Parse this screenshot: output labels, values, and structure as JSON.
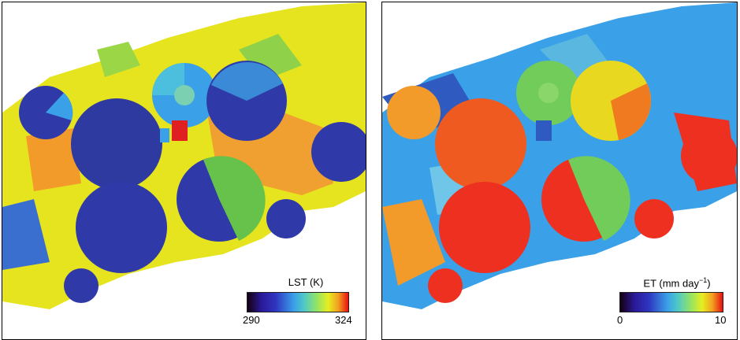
{
  "lst_panel": {
    "legend_title": "LST (K)",
    "min_label": "290",
    "max_label": "324",
    "colors": {
      "background": "#e6e41e",
      "cool": "#2f3aa8",
      "mid": "#3aa0e8",
      "warm": "#f29a2a",
      "hot": "#e02020"
    }
  },
  "et_panel": {
    "legend_title_prefix": "ET (mm day",
    "legend_title_sup": "−1",
    "legend_title_suffix": ")",
    "min_label": "0",
    "max_label": "10",
    "colors": {
      "background": "#3aa0e8",
      "low": "#2f5ac0",
      "mid": "#72cc5a",
      "high": "#ee3020",
      "warm": "#f29a2a"
    }
  }
}
